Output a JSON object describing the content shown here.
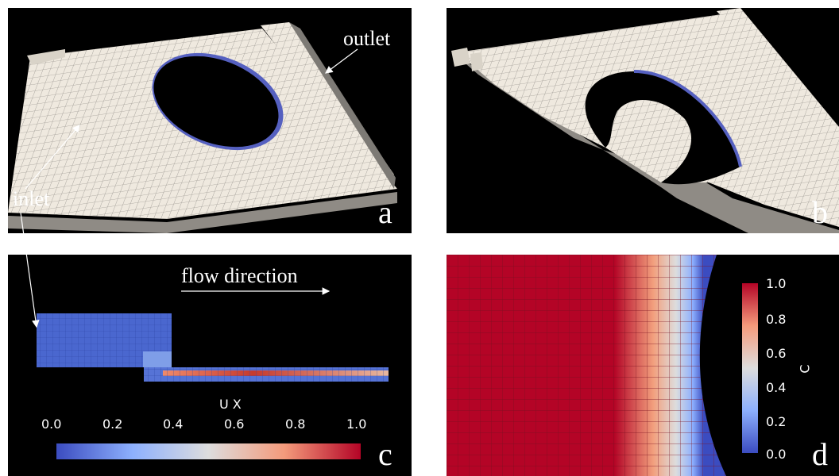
{
  "panels": {
    "a": {
      "label": "a",
      "annotations": {
        "outlet": "outlet",
        "inlet": "inlet"
      }
    },
    "b": {
      "label": "b"
    },
    "c": {
      "label": "c",
      "flow_label": "flow direction",
      "colorbar": {
        "title": "U X",
        "ticks": [
          "0.0",
          "0.2",
          "0.4",
          "0.6",
          "0.8",
          "1.0"
        ],
        "colors": [
          "#3b4cc0",
          "#8db0fe",
          "#dddddd",
          "#f49a7b",
          "#b40426"
        ]
      }
    },
    "d": {
      "label": "d",
      "colorbar": {
        "title": "C",
        "ticks": [
          "1.0",
          "0.8",
          "0.6",
          "0.4",
          "0.2",
          "0.0"
        ],
        "colors": [
          "#b40426",
          "#f49a7b",
          "#dddddd",
          "#8db0fe",
          "#3b4cc0"
        ]
      }
    }
  },
  "colors": {
    "background": "#000000",
    "mesh_face": "#efe9df",
    "mesh_line": "#9a9690",
    "field_red": "#b40426"
  }
}
